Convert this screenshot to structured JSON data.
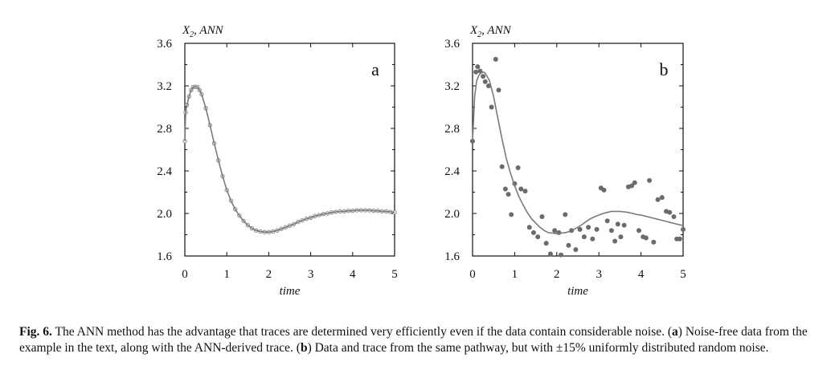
{
  "chart_data": [
    {
      "type": "scatter",
      "panel_label": "a",
      "ylabel": "X2, ANN",
      "xlabel": "time",
      "xlim": [
        0,
        5
      ],
      "ylim": [
        1.6,
        3.6
      ],
      "xticks": [
        0,
        1,
        2,
        3,
        4,
        5
      ],
      "yticks": [
        1.6,
        2.0,
        2.4,
        2.8,
        3.2,
        3.6
      ],
      "ytick_labels": [
        "1.6",
        "2.0",
        "2.4",
        "2.8",
        "3.2",
        "3.6"
      ],
      "series": [
        {
          "kind": "points",
          "marker": "open-circle",
          "x": [
            0.0,
            0.02,
            0.05,
            0.1,
            0.15,
            0.2,
            0.25,
            0.3,
            0.35,
            0.4,
            0.5,
            0.6,
            0.7,
            0.8,
            0.9,
            1.0,
            1.1,
            1.2,
            1.3,
            1.4,
            1.5,
            1.6,
            1.7,
            1.8,
            1.9,
            2.0,
            2.1,
            2.2,
            2.3,
            2.4,
            2.5,
            2.6,
            2.7,
            2.8,
            2.9,
            3.0,
            3.1,
            3.2,
            3.3,
            3.4,
            3.5,
            3.6,
            3.7,
            3.8,
            3.9,
            4.0,
            4.1,
            4.2,
            4.3,
            4.4,
            4.5,
            4.6,
            4.7,
            4.8,
            4.9,
            5.0
          ],
          "y": [
            2.68,
            2.95,
            3.02,
            3.1,
            3.16,
            3.19,
            3.19,
            3.19,
            3.16,
            3.12,
            2.99,
            2.83,
            2.66,
            2.5,
            2.35,
            2.22,
            2.12,
            2.04,
            1.98,
            1.93,
            1.89,
            1.86,
            1.84,
            1.83,
            1.825,
            1.825,
            1.83,
            1.84,
            1.855,
            1.87,
            1.885,
            1.9,
            1.92,
            1.935,
            1.95,
            1.96,
            1.975,
            1.985,
            1.995,
            2.0,
            2.01,
            2.015,
            2.02,
            2.02,
            2.025,
            2.025,
            2.03,
            2.03,
            2.03,
            2.03,
            2.025,
            2.025,
            2.02,
            2.02,
            2.015,
            2.01
          ]
        },
        {
          "kind": "line",
          "x": [
            0.0,
            0.02,
            0.05,
            0.1,
            0.15,
            0.2,
            0.25,
            0.3,
            0.35,
            0.4,
            0.5,
            0.6,
            0.7,
            0.8,
            0.9,
            1.0,
            1.1,
            1.2,
            1.3,
            1.4,
            1.5,
            1.6,
            1.7,
            1.8,
            1.9,
            2.0,
            2.1,
            2.2,
            2.3,
            2.4,
            2.5,
            2.6,
            2.7,
            2.8,
            2.9,
            3.0,
            3.1,
            3.2,
            3.3,
            3.4,
            3.5,
            3.6,
            3.7,
            3.8,
            3.9,
            4.0,
            4.1,
            4.2,
            4.3,
            4.4,
            4.5,
            4.6,
            4.7,
            4.8,
            4.9,
            5.0
          ],
          "y": [
            2.68,
            2.95,
            3.02,
            3.1,
            3.16,
            3.19,
            3.19,
            3.19,
            3.16,
            3.12,
            2.99,
            2.83,
            2.66,
            2.5,
            2.35,
            2.22,
            2.12,
            2.04,
            1.98,
            1.93,
            1.89,
            1.86,
            1.84,
            1.83,
            1.825,
            1.825,
            1.83,
            1.84,
            1.855,
            1.87,
            1.885,
            1.9,
            1.92,
            1.935,
            1.95,
            1.96,
            1.975,
            1.985,
            1.995,
            2.0,
            2.01,
            2.015,
            2.02,
            2.02,
            2.025,
            2.025,
            2.03,
            2.03,
            2.03,
            2.03,
            2.025,
            2.025,
            2.02,
            2.02,
            2.015,
            2.01
          ]
        }
      ]
    },
    {
      "type": "scatter",
      "panel_label": "b",
      "ylabel": "X2, ANN",
      "xlabel": "time",
      "xlim": [
        0,
        5
      ],
      "ylim": [
        1.6,
        3.6
      ],
      "xticks": [
        0,
        1,
        2,
        3,
        4,
        5
      ],
      "yticks": [
        1.6,
        2.0,
        2.4,
        2.8,
        3.2,
        3.6
      ],
      "ytick_labels": [
        "1.6",
        "2.0",
        "2.4",
        "2.8",
        "3.2",
        "3.6"
      ],
      "series": [
        {
          "kind": "points",
          "marker": "filled-circle",
          "x": [
            0.0,
            0.08,
            0.12,
            0.18,
            0.25,
            0.3,
            0.38,
            0.45,
            0.55,
            0.62,
            0.7,
            0.78,
            0.85,
            0.92,
            1.0,
            1.08,
            1.15,
            1.25,
            1.35,
            1.45,
            1.55,
            1.65,
            1.75,
            1.85,
            1.95,
            2.05,
            2.1,
            2.2,
            2.28,
            2.35,
            2.45,
            2.55,
            2.65,
            2.75,
            2.85,
            2.95,
            3.05,
            3.12,
            3.2,
            3.3,
            3.38,
            3.45,
            3.52,
            3.6,
            3.7,
            3.78,
            3.85,
            3.95,
            4.05,
            4.12,
            4.2,
            4.3,
            4.4,
            4.5,
            4.6,
            4.68,
            4.78,
            4.85,
            4.92,
            5.0
          ],
          "y": [
            2.68,
            3.33,
            3.38,
            3.34,
            3.29,
            3.24,
            3.2,
            3.0,
            3.45,
            3.16,
            2.44,
            2.23,
            2.18,
            1.99,
            2.28,
            2.43,
            2.23,
            2.21,
            1.87,
            1.82,
            1.78,
            1.97,
            1.72,
            1.62,
            1.84,
            1.82,
            1.61,
            1.99,
            1.7,
            1.84,
            1.66,
            1.85,
            1.78,
            1.87,
            1.76,
            1.85,
            2.24,
            2.22,
            1.93,
            1.84,
            1.74,
            1.9,
            1.78,
            1.89,
            2.25,
            2.26,
            2.29,
            1.84,
            1.78,
            1.77,
            2.31,
            1.73,
            2.13,
            2.15,
            2.02,
            2.01,
            1.97,
            1.76,
            1.76,
            1.85
          ]
        },
        {
          "kind": "line",
          "x": [
            0.0,
            0.05,
            0.1,
            0.15,
            0.2,
            0.25,
            0.3,
            0.4,
            0.5,
            0.6,
            0.7,
            0.8,
            0.9,
            1.0,
            1.1,
            1.2,
            1.3,
            1.4,
            1.5,
            1.6,
            1.7,
            1.8,
            1.9,
            2.0,
            2.1,
            2.2,
            2.3,
            2.4,
            2.5,
            2.6,
            2.7,
            2.8,
            2.9,
            3.0,
            3.1,
            3.2,
            3.3,
            3.4,
            3.5,
            3.6,
            3.7,
            3.8,
            3.9,
            4.0,
            4.1,
            4.2,
            4.3,
            4.4,
            4.5,
            4.6,
            4.7,
            4.8,
            4.9,
            5.0
          ],
          "y": [
            2.68,
            3.1,
            3.25,
            3.3,
            3.32,
            3.33,
            3.32,
            3.25,
            3.1,
            2.9,
            2.7,
            2.52,
            2.38,
            2.26,
            2.16,
            2.08,
            2.01,
            1.95,
            1.91,
            1.87,
            1.84,
            1.82,
            1.815,
            1.81,
            1.815,
            1.82,
            1.83,
            1.85,
            1.87,
            1.895,
            1.925,
            1.95,
            1.97,
            1.985,
            2.0,
            2.01,
            2.02,
            2.02,
            2.02,
            2.015,
            2.01,
            2.0,
            1.99,
            1.985,
            1.975,
            1.965,
            1.955,
            1.945,
            1.935,
            1.925,
            1.915,
            1.905,
            1.895,
            1.885
          ]
        }
      ]
    }
  ],
  "caption": {
    "fig_label": "Fig. 6.",
    "text_1": "The ANN method has the advantage that traces are determined very efficiently even if the data contain considerable noise. (",
    "bold_a": "a",
    "text_2": ") Noise-free data from the example in the text, along with the ANN-derived trace. (",
    "bold_b": "b",
    "text_3": ") Data and trace from the same pathway, but with ±15% uniformly distributed random noise."
  },
  "colors": {
    "line": "#7a7a7a",
    "point_fill": "#6b6b6b",
    "open_point": "#8a8a8a",
    "axis": "#111111"
  }
}
